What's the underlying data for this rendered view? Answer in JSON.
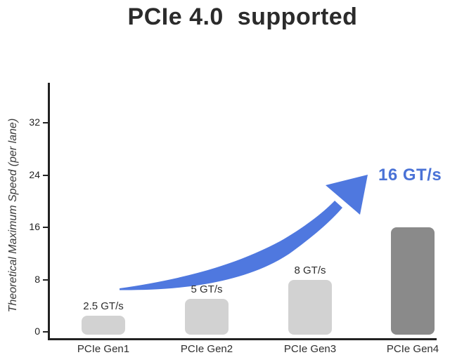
{
  "title": "PCIe 4.0  supported",
  "chart_data": {
    "type": "bar",
    "title": "PCIe 4.0  supported",
    "ylabel": "Theoretical Maximum Speed (per lane)",
    "xlabel": "",
    "unit": "GT/s",
    "categories": [
      "PCIe Gen1",
      "PCIe Gen2",
      "PCIe Gen3",
      "PCIe Gen4"
    ],
    "values": [
      2.5,
      5,
      8,
      16
    ],
    "value_labels": [
      "2.5 GT/s",
      "5 GT/s",
      "8 GT/s",
      ""
    ],
    "y_ticks": [
      0,
      8,
      16,
      24,
      32
    ],
    "ylim": [
      0,
      38
    ],
    "grid": false,
    "legend_position": "none",
    "bar_colors": [
      "#d2d2d2",
      "#d2d2d2",
      "#d2d2d2",
      "#8a8a8a"
    ],
    "axis_color": "#222222",
    "text_color": "#2e2e2e",
    "annotation": {
      "text": "16 GT/s",
      "color": "#4a72d6",
      "arrow_color": "#4f78df"
    }
  }
}
